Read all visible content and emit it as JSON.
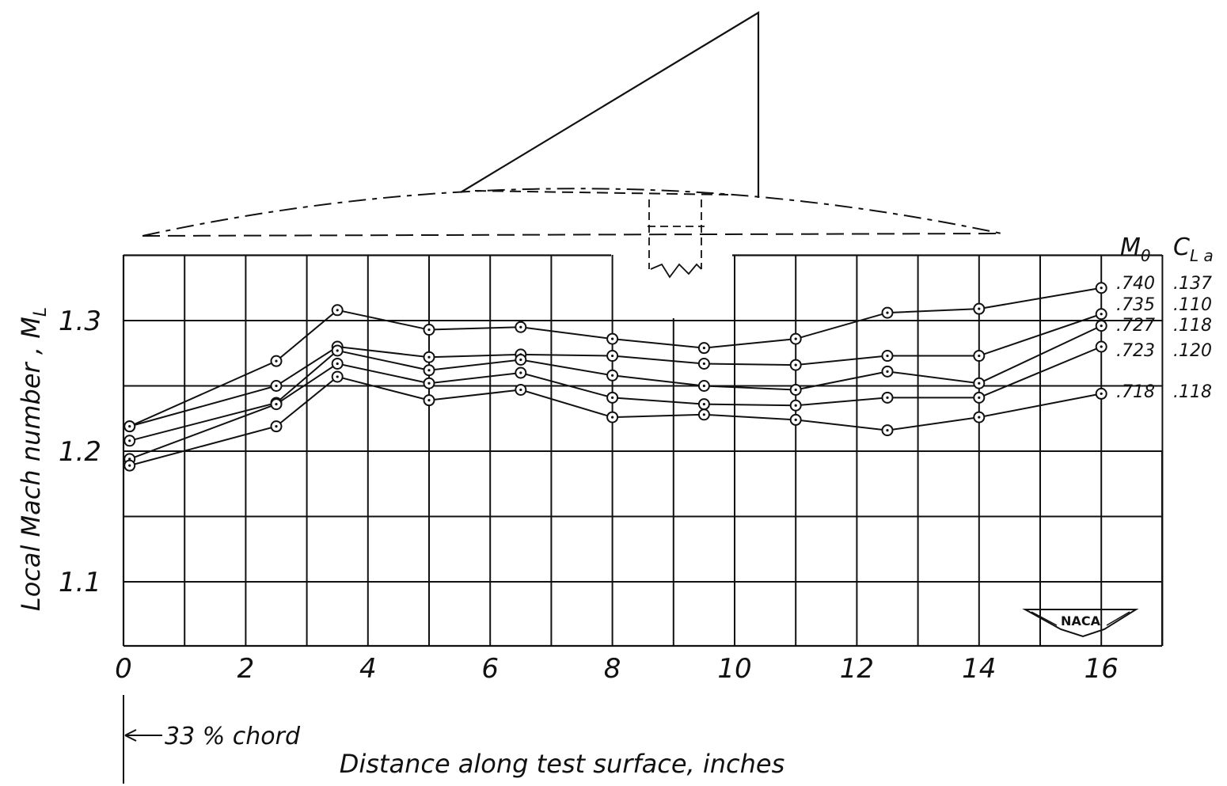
{
  "chart_data": {
    "type": "line",
    "xlabel": "Distance along test surface, inches",
    "ylabel": "Local Mach number , M",
    "ylabel_subscript": "L",
    "annotation": "33 % chord",
    "xlim": [
      0,
      17
    ],
    "ylim": [
      1.05,
      1.35
    ],
    "x_ticks": [
      "0",
      "2",
      "4",
      "6",
      "8",
      "10",
      "12",
      "14",
      "16"
    ],
    "y_ticks": [
      "1.1",
      "1.2",
      "1.3"
    ],
    "legend_header": {
      "m0": "M",
      "m0_sub": "0",
      "cl": "C",
      "cl_sub": "L a"
    },
    "x": [
      0.1,
      2.5,
      3.5,
      5,
      6.5,
      8,
      9.5,
      11,
      12.5,
      14,
      16
    ],
    "series": [
      {
        "m0": ".740",
        "cl": ".137",
        "values": [
          1.219,
          1.269,
          1.308,
          1.293,
          1.295,
          1.286,
          1.279,
          1.286,
          1.306,
          1.309,
          1.325
        ]
      },
      {
        "m0": ".735",
        "cl": ".110",
        "values": [
          1.219,
          1.25,
          1.28,
          1.272,
          1.274,
          1.273,
          1.267,
          1.266,
          1.273,
          1.273,
          1.305
        ]
      },
      {
        "m0": ".727",
        "cl": ".118",
        "values": [
          1.208,
          1.237,
          1.277,
          1.262,
          1.27,
          1.258,
          1.25,
          1.247,
          1.261,
          1.252,
          1.296
        ]
      },
      {
        "m0": ".723",
        "cl": ".120",
        "values": [
          1.194,
          1.236,
          1.267,
          1.252,
          1.26,
          1.241,
          1.236,
          1.235,
          1.241,
          1.241,
          1.28
        ]
      },
      {
        "m0": ".718",
        "cl": ".118",
        "values": [
          1.189,
          1.219,
          1.257,
          1.239,
          1.247,
          1.226,
          1.228,
          1.224,
          1.216,
          1.226,
          1.244
        ]
      }
    ],
    "logo": "NACA"
  }
}
